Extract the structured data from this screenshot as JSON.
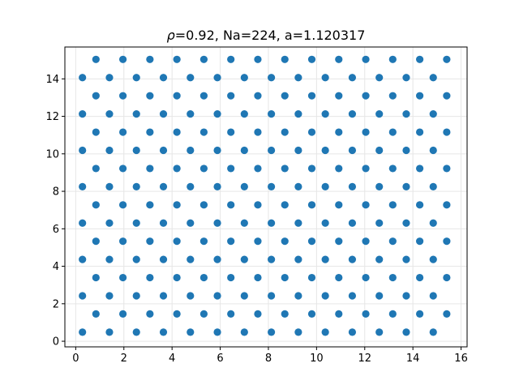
{
  "chart_data": {
    "type": "scatter",
    "title_prefix": "ρ",
    "title_rest": "=0.92, Na=224, a=1.120317",
    "xlabel": "",
    "ylabel": "",
    "xlim": [
      -0.45,
      16.25
    ],
    "ylim": [
      -0.3,
      15.7
    ],
    "xticks": [
      0,
      2,
      4,
      6,
      8,
      10,
      12,
      14,
      16
    ],
    "yticks": [
      0,
      2,
      4,
      6,
      8,
      10,
      12,
      14
    ],
    "xtick_labels": [
      "0",
      "2",
      "4",
      "6",
      "8",
      "10",
      "12",
      "14",
      "16"
    ],
    "ytick_labels": [
      "0",
      "2",
      "4",
      "6",
      "8",
      "10",
      "12",
      "14"
    ],
    "grid": true,
    "marker_color": "#1f77b4",
    "lattice": {
      "a": 1.120317,
      "even_row_x0": 0.28,
      "odd_row_x0": 0.84,
      "y0": 0.485,
      "row_dy": 0.9702,
      "rows": 16,
      "points_per_row": 14
    }
  }
}
